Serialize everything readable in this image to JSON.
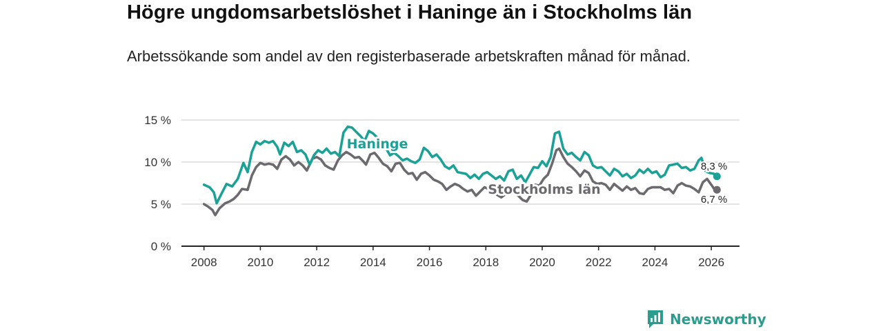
{
  "title": "Högre ungdomsarbetslöshet i Haninge än i Stockholms län",
  "subtitle": "Arbetssökande som andel av den registerbaserade arbetskraften månad för månad.",
  "brand": {
    "name": "Newsworthy",
    "color": "#2a9d8f"
  },
  "colors": {
    "haninge": "#1ba196",
    "stockholm": "#6c6a6f",
    "grid": "#d4d4d4",
    "axis": "#222222"
  },
  "chart_data": {
    "type": "line",
    "title": "Högre ungdomsarbetslöshet i Haninge än i Stockholms län",
    "xlabel": "",
    "ylabel": "",
    "xlim": [
      2007.2,
      2027.0
    ],
    "ylim": [
      0,
      15
    ],
    "y_ticks": [
      0,
      5,
      10,
      15
    ],
    "y_tick_labels": [
      "0 %",
      "5 %",
      "10 %",
      "15 %"
    ],
    "x_ticks": [
      2008,
      2010,
      2012,
      2014,
      2016,
      2018,
      2020,
      2022,
      2024,
      2026
    ],
    "x_tick_labels": [
      "2008",
      "2010",
      "2012",
      "2014",
      "2016",
      "2018",
      "2020",
      "2022",
      "2024",
      "2026"
    ],
    "grid": true,
    "series": [
      {
        "name": "Haninge",
        "color": "#1ba196",
        "last_label": "8,3 %",
        "points": [
          [
            2008.0,
            7.3
          ],
          [
            2008.2,
            7.0
          ],
          [
            2008.35,
            6.4
          ],
          [
            2008.45,
            5.1
          ],
          [
            2008.6,
            6.1
          ],
          [
            2008.8,
            7.4
          ],
          [
            2009.0,
            7.1
          ],
          [
            2009.2,
            8.0
          ],
          [
            2009.4,
            9.9
          ],
          [
            2009.55,
            8.8
          ],
          [
            2009.7,
            11.2
          ],
          [
            2009.85,
            12.4
          ],
          [
            2010.0,
            12.1
          ],
          [
            2010.15,
            12.5
          ],
          [
            2010.3,
            12.3
          ],
          [
            2010.45,
            12.5
          ],
          [
            2010.6,
            11.8
          ],
          [
            2010.7,
            10.9
          ],
          [
            2010.85,
            12.3
          ],
          [
            2011.0,
            11.9
          ],
          [
            2011.15,
            12.4
          ],
          [
            2011.3,
            11.2
          ],
          [
            2011.45,
            11.4
          ],
          [
            2011.6,
            10.9
          ],
          [
            2011.75,
            9.7
          ],
          [
            2011.9,
            10.8
          ],
          [
            2012.05,
            11.4
          ],
          [
            2012.2,
            11.1
          ],
          [
            2012.35,
            11.6
          ],
          [
            2012.5,
            11.0
          ],
          [
            2012.65,
            11.2
          ],
          [
            2012.8,
            10.7
          ],
          [
            2012.95,
            13.5
          ],
          [
            2013.1,
            14.2
          ],
          [
            2013.25,
            14.1
          ],
          [
            2013.4,
            13.6
          ],
          [
            2013.55,
            13.1
          ],
          [
            2013.7,
            12.5
          ],
          [
            2013.85,
            13.7
          ],
          [
            2014.0,
            13.4
          ],
          [
            2014.15,
            12.9
          ],
          [
            2014.3,
            12.1
          ],
          [
            2014.45,
            11.7
          ],
          [
            2014.6,
            10.8
          ],
          [
            2014.75,
            11.1
          ],
          [
            2014.9,
            10.7
          ],
          [
            2015.05,
            10.2
          ],
          [
            2015.2,
            10.4
          ],
          [
            2015.35,
            10.1
          ],
          [
            2015.5,
            9.9
          ],
          [
            2015.65,
            10.3
          ],
          [
            2015.8,
            11.7
          ],
          [
            2015.95,
            11.3
          ],
          [
            2016.1,
            10.6
          ],
          [
            2016.25,
            10.9
          ],
          [
            2016.4,
            10.3
          ],
          [
            2016.55,
            9.5
          ],
          [
            2016.7,
            9.2
          ],
          [
            2016.85,
            9.6
          ],
          [
            2017.0,
            8.8
          ],
          [
            2017.15,
            8.7
          ],
          [
            2017.3,
            8.6
          ],
          [
            2017.45,
            8.1
          ],
          [
            2017.6,
            8.5
          ],
          [
            2017.75,
            8.0
          ],
          [
            2017.9,
            8.6
          ],
          [
            2018.05,
            8.8
          ],
          [
            2018.2,
            8.4
          ],
          [
            2018.35,
            8.0
          ],
          [
            2018.5,
            8.3
          ],
          [
            2018.65,
            7.8
          ],
          [
            2018.8,
            8.9
          ],
          [
            2018.95,
            9.1
          ],
          [
            2019.1,
            8.0
          ],
          [
            2019.25,
            8.4
          ],
          [
            2019.4,
            7.6
          ],
          [
            2019.55,
            8.5
          ],
          [
            2019.7,
            9.4
          ],
          [
            2019.85,
            9.3
          ],
          [
            2020.0,
            10.1
          ],
          [
            2020.15,
            9.5
          ],
          [
            2020.3,
            10.6
          ],
          [
            2020.45,
            13.4
          ],
          [
            2020.6,
            13.6
          ],
          [
            2020.75,
            11.6
          ],
          [
            2020.9,
            10.9
          ],
          [
            2021.05,
            11.1
          ],
          [
            2021.2,
            10.6
          ],
          [
            2021.35,
            10.2
          ],
          [
            2021.5,
            11.2
          ],
          [
            2021.65,
            10.8
          ],
          [
            2021.8,
            9.6
          ],
          [
            2021.95,
            9.3
          ],
          [
            2022.1,
            9.4
          ],
          [
            2022.25,
            8.9
          ],
          [
            2022.4,
            8.4
          ],
          [
            2022.55,
            9.2
          ],
          [
            2022.7,
            8.9
          ],
          [
            2022.85,
            8.3
          ],
          [
            2023.0,
            8.6
          ],
          [
            2023.15,
            8.1
          ],
          [
            2023.3,
            8.4
          ],
          [
            2023.45,
            9.1
          ],
          [
            2023.6,
            8.7
          ],
          [
            2023.75,
            9.2
          ],
          [
            2023.9,
            8.7
          ],
          [
            2024.05,
            8.9
          ],
          [
            2024.2,
            8.2
          ],
          [
            2024.35,
            8.5
          ],
          [
            2024.5,
            9.6
          ],
          [
            2024.65,
            9.7
          ],
          [
            2024.8,
            9.8
          ],
          [
            2024.95,
            9.3
          ],
          [
            2025.1,
            9.4
          ],
          [
            2025.25,
            9.0
          ],
          [
            2025.4,
            9.2
          ],
          [
            2025.55,
            10.2
          ],
          [
            2025.65,
            10.5
          ],
          [
            2025.8,
            8.9
          ],
          [
            2025.95,
            8.7
          ],
          [
            2026.1,
            8.6
          ],
          [
            2026.2,
            8.3
          ]
        ]
      },
      {
        "name": "Stockholms län",
        "color": "#6c6a6f",
        "last_label": "6,7 %",
        "points": [
          [
            2008.0,
            5.0
          ],
          [
            2008.15,
            4.7
          ],
          [
            2008.3,
            4.3
          ],
          [
            2008.4,
            3.7
          ],
          [
            2008.55,
            4.5
          ],
          [
            2008.75,
            5.1
          ],
          [
            2008.9,
            5.3
          ],
          [
            2009.05,
            5.6
          ],
          [
            2009.2,
            6.1
          ],
          [
            2009.35,
            6.8
          ],
          [
            2009.55,
            6.7
          ],
          [
            2009.7,
            8.4
          ],
          [
            2009.85,
            9.4
          ],
          [
            2010.0,
            9.9
          ],
          [
            2010.15,
            9.7
          ],
          [
            2010.3,
            9.8
          ],
          [
            2010.45,
            9.7
          ],
          [
            2010.6,
            9.2
          ],
          [
            2010.75,
            10.3
          ],
          [
            2010.9,
            10.7
          ],
          [
            2011.05,
            10.3
          ],
          [
            2011.2,
            9.6
          ],
          [
            2011.35,
            10.0
          ],
          [
            2011.5,
            9.6
          ],
          [
            2011.65,
            9.0
          ],
          [
            2011.85,
            10.4
          ],
          [
            2012.0,
            10.6
          ],
          [
            2012.15,
            10.3
          ],
          [
            2012.3,
            9.6
          ],
          [
            2012.45,
            9.3
          ],
          [
            2012.6,
            9.1
          ],
          [
            2012.75,
            10.2
          ],
          [
            2012.9,
            10.8
          ],
          [
            2013.05,
            11.2
          ],
          [
            2013.2,
            10.9
          ],
          [
            2013.35,
            10.5
          ],
          [
            2013.5,
            10.6
          ],
          [
            2013.65,
            10.1
          ],
          [
            2013.75,
            9.7
          ],
          [
            2013.9,
            10.9
          ],
          [
            2014.05,
            11.1
          ],
          [
            2014.2,
            10.5
          ],
          [
            2014.35,
            9.8
          ],
          [
            2014.5,
            9.5
          ],
          [
            2014.65,
            8.9
          ],
          [
            2014.8,
            9.8
          ],
          [
            2014.95,
            9.9
          ],
          [
            2015.1,
            9.1
          ],
          [
            2015.25,
            8.6
          ],
          [
            2015.4,
            8.7
          ],
          [
            2015.55,
            7.9
          ],
          [
            2015.7,
            8.6
          ],
          [
            2015.85,
            8.8
          ],
          [
            2016.0,
            8.4
          ],
          [
            2016.15,
            7.9
          ],
          [
            2016.3,
            7.7
          ],
          [
            2016.45,
            7.4
          ],
          [
            2016.6,
            6.7
          ],
          [
            2016.75,
            7.1
          ],
          [
            2016.9,
            7.4
          ],
          [
            2017.05,
            7.2
          ],
          [
            2017.2,
            6.8
          ],
          [
            2017.35,
            6.5
          ],
          [
            2017.5,
            6.7
          ],
          [
            2017.65,
            6.0
          ],
          [
            2017.8,
            6.5
          ],
          [
            2017.95,
            7.0
          ],
          [
            2018.1,
            6.8
          ],
          [
            2018.25,
            6.4
          ],
          [
            2018.4,
            6.1
          ],
          [
            2018.55,
            5.8
          ],
          [
            2018.7,
            6.2
          ],
          [
            2018.85,
            6.5
          ],
          [
            2019.0,
            6.4
          ],
          [
            2019.15,
            6.0
          ],
          [
            2019.3,
            5.5
          ],
          [
            2019.45,
            5.3
          ],
          [
            2019.6,
            6.1
          ],
          [
            2019.75,
            7.3
          ],
          [
            2019.9,
            7.2
          ],
          [
            2020.05,
            8.0
          ],
          [
            2020.2,
            8.5
          ],
          [
            2020.35,
            9.8
          ],
          [
            2020.5,
            11.4
          ],
          [
            2020.6,
            11.6
          ],
          [
            2020.75,
            10.6
          ],
          [
            2020.9,
            9.8
          ],
          [
            2021.05,
            9.4
          ],
          [
            2021.2,
            8.9
          ],
          [
            2021.35,
            8.3
          ],
          [
            2021.5,
            9.0
          ],
          [
            2021.65,
            8.7
          ],
          [
            2021.8,
            7.7
          ],
          [
            2021.95,
            7.4
          ],
          [
            2022.1,
            7.5
          ],
          [
            2022.25,
            7.3
          ],
          [
            2022.4,
            6.7
          ],
          [
            2022.55,
            7.4
          ],
          [
            2022.7,
            7.0
          ],
          [
            2022.85,
            6.6
          ],
          [
            2023.0,
            7.1
          ],
          [
            2023.15,
            6.7
          ],
          [
            2023.3,
            6.9
          ],
          [
            2023.45,
            6.3
          ],
          [
            2023.6,
            6.2
          ],
          [
            2023.75,
            6.8
          ],
          [
            2023.9,
            7.0
          ],
          [
            2024.05,
            7.0
          ],
          [
            2024.2,
            7.0
          ],
          [
            2024.35,
            6.7
          ],
          [
            2024.5,
            6.8
          ],
          [
            2024.65,
            6.3
          ],
          [
            2024.8,
            7.2
          ],
          [
            2024.95,
            7.5
          ],
          [
            2025.1,
            7.2
          ],
          [
            2025.25,
            7.1
          ],
          [
            2025.4,
            6.8
          ],
          [
            2025.55,
            6.4
          ],
          [
            2025.7,
            7.6
          ],
          [
            2025.85,
            8.0
          ],
          [
            2026.0,
            7.3
          ],
          [
            2026.1,
            6.8
          ],
          [
            2026.2,
            6.7
          ]
        ]
      }
    ]
  }
}
